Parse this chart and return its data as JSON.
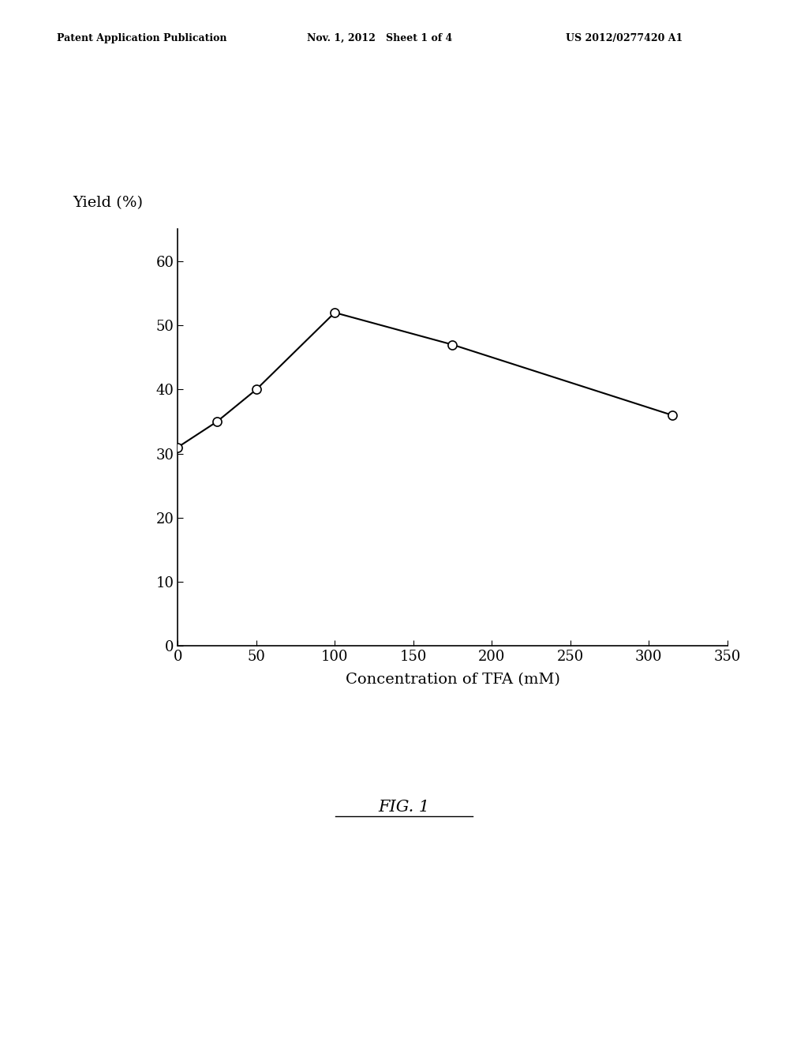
{
  "x_values": [
    0,
    25,
    50,
    100,
    175,
    315
  ],
  "y_values": [
    31,
    35,
    40,
    52,
    47,
    36
  ],
  "xlabel": "Concentration of TFA (mM)",
  "ylabel": "Yield (%)",
  "xlim": [
    0,
    350
  ],
  "ylim": [
    0,
    65
  ],
  "xticks": [
    0,
    50,
    100,
    150,
    200,
    250,
    300,
    350
  ],
  "yticks": [
    0,
    10,
    20,
    30,
    40,
    50,
    60
  ],
  "line_color": "#000000",
  "marker": "o",
  "marker_facecolor": "#ffffff",
  "marker_edgecolor": "#000000",
  "marker_size": 8,
  "linewidth": 1.5,
  "fig_caption": "FIG. 1",
  "header_left": "Patent Application Publication",
  "header_mid": "Nov. 1, 2012   Sheet 1 of 4",
  "header_right": "US 2012/0277420 A1",
  "background_color": "#ffffff",
  "fig_width": 10.24,
  "fig_height": 13.2,
  "dpi": 100
}
